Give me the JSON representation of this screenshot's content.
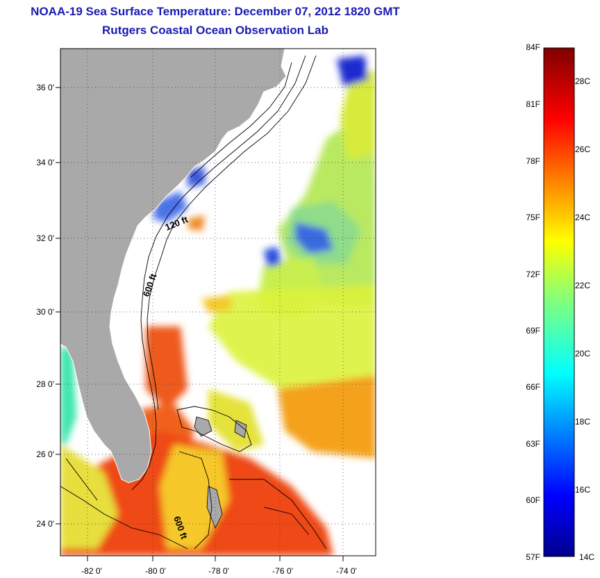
{
  "title_line1": "NOAA-19 Sea Surface Temperature:  December 07, 2012 1820 GMT",
  "title_line2": "Rutgers Coastal Ocean Observation Lab",
  "map": {
    "lat_labels": [
      "36 0'",
      "34 0'",
      "32 0'",
      "30 0'",
      "28 0'",
      "26 0'",
      "24 0'"
    ],
    "lon_labels": [
      "-82 0'",
      "-80 0'",
      "-78 0'",
      "-76 0'",
      "-74 0'"
    ],
    "contour_labels": [
      "120 ft",
      "600 ft",
      "600 ft"
    ],
    "land_color": "#a9a9a9",
    "cloud_color": "#ffffff"
  },
  "colorbar": {
    "f_labels": [
      "84F",
      "81F",
      "78F",
      "75F",
      "72F",
      "69F",
      "66F",
      "63F",
      "60F",
      "57F"
    ],
    "c_labels": [
      "28C",
      "26C",
      "24C",
      "22C",
      "20C",
      "18C",
      "16C",
      "14C"
    ],
    "min_c": 14,
    "max_c": 29,
    "palette": "jet"
  }
}
